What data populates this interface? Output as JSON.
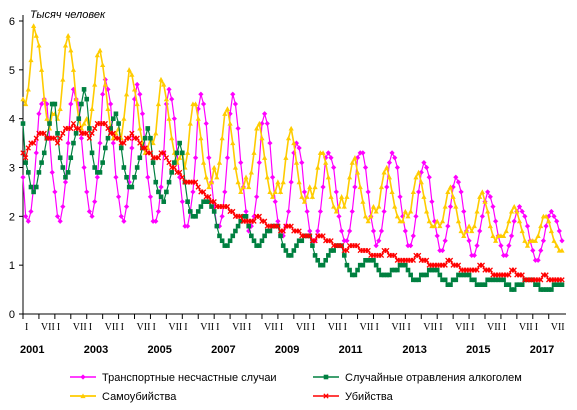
{
  "chart_data": {
    "type": "line",
    "unit_label": "Тысяч человек",
    "x_start": "2001-01",
    "x_end": "2017-12",
    "period": "monthly",
    "ylim": [
      0,
      6
    ],
    "yticks": [
      0,
      1,
      2,
      3,
      4,
      5,
      6
    ],
    "quarter_labels": [
      "I",
      "VII"
    ],
    "year_labels": [
      "2001",
      "2003",
      "2005",
      "2007",
      "2009",
      "2011",
      "2013",
      "2015",
      "2017"
    ],
    "grid": false,
    "legend_position": "bottom",
    "series": [
      {
        "name": "Транспортные несчастные случаи",
        "color": "#ff00ff",
        "marker": "diamond",
        "values": [
          2.8,
          2.0,
          1.9,
          2.1,
          2.6,
          3.3,
          4.1,
          4.3,
          4.4,
          4.3,
          3.6,
          2.9,
          2.5,
          2.0,
          1.9,
          2.2,
          2.7,
          3.5,
          4.3,
          4.6,
          4.4,
          4.3,
          3.6,
          3.0,
          2.5,
          2.1,
          2.0,
          2.3,
          2.8,
          3.5,
          4.5,
          4.8,
          4.6,
          4.3,
          3.5,
          2.8,
          2.4,
          2.0,
          1.9,
          2.2,
          2.7,
          3.4,
          4.4,
          4.7,
          4.5,
          4.1,
          3.4,
          2.8,
          2.4,
          1.9,
          1.9,
          2.1,
          2.6,
          3.3,
          4.3,
          4.6,
          4.4,
          4.0,
          3.3,
          2.8,
          2.3,
          1.8,
          1.8,
          2.1,
          2.5,
          3.2,
          4.2,
          4.5,
          4.3,
          3.9,
          3.2,
          2.7,
          2.2,
          1.8,
          1.8,
          2.0,
          2.5,
          3.2,
          4.1,
          4.5,
          4.3,
          3.8,
          3.1,
          2.6,
          2.1,
          1.7,
          1.8,
          2.0,
          2.4,
          3.1,
          3.9,
          4.1,
          3.9,
          3.5,
          2.8,
          2.3,
          1.9,
          1.6,
          1.6,
          1.8,
          2.1,
          2.7,
          3.3,
          3.5,
          3.4,
          3.1,
          2.5,
          2.1,
          1.7,
          1.5,
          1.5,
          1.7,
          2.1,
          2.6,
          3.2,
          3.3,
          3.2,
          3.0,
          2.5,
          2.0,
          1.7,
          1.5,
          1.5,
          1.7,
          2.1,
          2.6,
          3.2,
          3.3,
          3.3,
          3.0,
          2.5,
          2.0,
          1.7,
          1.4,
          1.5,
          1.7,
          2.1,
          2.6,
          3.1,
          3.3,
          3.2,
          3.0,
          2.4,
          2.0,
          1.7,
          1.4,
          1.4,
          1.6,
          2.0,
          2.5,
          2.9,
          3.1,
          3.0,
          2.8,
          2.3,
          1.9,
          1.6,
          1.3,
          1.3,
          1.5,
          1.8,
          2.2,
          2.6,
          2.8,
          2.7,
          2.5,
          2.1,
          1.7,
          1.5,
          1.2,
          1.2,
          1.4,
          1.7,
          2.0,
          2.3,
          2.5,
          2.4,
          2.2,
          1.9,
          1.6,
          1.4,
          1.2,
          1.2,
          1.4,
          1.6,
          1.9,
          2.1,
          2.2,
          2.1,
          2.0,
          1.8,
          1.5,
          1.3,
          1.1,
          1.1,
          1.3,
          1.5,
          1.8,
          2.0,
          2.1,
          2.0,
          1.9,
          1.7,
          1.5
        ]
      },
      {
        "name": "Случайные отравления алкоголем",
        "color": "#008040",
        "marker": "square",
        "values": [
          3.9,
          3.1,
          2.9,
          2.6,
          2.5,
          2.6,
          2.9,
          3.1,
          3.3,
          3.6,
          3.9,
          4.3,
          4.3,
          3.7,
          3.2,
          3.0,
          2.8,
          2.9,
          3.2,
          3.5,
          3.7,
          4.0,
          4.3,
          4.6,
          4.4,
          3.8,
          3.3,
          3.0,
          2.9,
          2.9,
          3.1,
          3.4,
          3.6,
          3.8,
          4.0,
          4.1,
          3.9,
          3.4,
          3.0,
          2.8,
          2.6,
          2.6,
          2.8,
          3.0,
          3.2,
          3.4,
          3.6,
          3.8,
          3.6,
          3.1,
          2.7,
          2.5,
          2.4,
          2.3,
          2.5,
          2.7,
          2.9,
          3.1,
          3.3,
          3.5,
          3.3,
          2.7,
          2.3,
          2.1,
          2.0,
          2.0,
          2.1,
          2.2,
          2.3,
          2.3,
          2.3,
          2.2,
          2.1,
          1.8,
          1.6,
          1.5,
          1.4,
          1.4,
          1.5,
          1.6,
          1.7,
          1.8,
          1.9,
          2.0,
          2.0,
          1.8,
          1.6,
          1.5,
          1.4,
          1.4,
          1.5,
          1.6,
          1.7,
          1.7,
          1.8,
          1.8,
          1.8,
          1.6,
          1.4,
          1.3,
          1.2,
          1.2,
          1.3,
          1.4,
          1.5,
          1.5,
          1.6,
          1.6,
          1.6,
          1.4,
          1.2,
          1.1,
          1.0,
          1.0,
          1.1,
          1.2,
          1.3,
          1.3,
          1.4,
          1.4,
          1.4,
          1.2,
          1.0,
          0.9,
          0.8,
          0.8,
          0.9,
          1.0,
          1.0,
          1.1,
          1.1,
          1.1,
          1.1,
          1.0,
          0.9,
          0.8,
          0.8,
          0.8,
          0.8,
          0.9,
          0.9,
          0.9,
          1.0,
          1.0,
          1.0,
          0.9,
          0.8,
          0.7,
          0.7,
          0.7,
          0.8,
          0.8,
          0.8,
          0.9,
          0.9,
          0.9,
          0.9,
          0.8,
          0.7,
          0.7,
          0.6,
          0.6,
          0.7,
          0.7,
          0.8,
          0.8,
          0.8,
          0.8,
          0.8,
          0.7,
          0.7,
          0.6,
          0.6,
          0.6,
          0.6,
          0.7,
          0.7,
          0.7,
          0.7,
          0.7,
          0.7,
          0.7,
          0.6,
          0.6,
          0.5,
          0.5,
          0.6,
          0.6,
          0.6,
          0.7,
          0.7,
          0.7,
          0.7,
          0.6,
          0.6,
          0.5,
          0.5,
          0.5,
          0.5,
          0.5,
          0.6,
          0.6,
          0.6,
          0.6
        ]
      },
      {
        "name": "Самоубийства",
        "color": "#ffcc00",
        "marker": "triangle",
        "values": [
          4.4,
          4.3,
          4.6,
          5.2,
          5.9,
          5.7,
          5.5,
          5.0,
          4.4,
          4.0,
          3.8,
          4.1,
          4.1,
          4.0,
          4.2,
          4.8,
          5.5,
          5.7,
          5.4,
          5.0,
          4.4,
          4.0,
          3.8,
          3.9,
          4.0,
          3.8,
          4.2,
          4.7,
          5.3,
          5.4,
          5.1,
          4.7,
          4.2,
          3.8,
          3.6,
          3.7,
          3.8,
          3.6,
          4.0,
          4.5,
          5.0,
          4.9,
          4.6,
          4.3,
          3.8,
          3.5,
          3.3,
          3.4,
          3.6,
          3.5,
          3.7,
          4.3,
          4.8,
          4.7,
          4.4,
          4.0,
          3.6,
          3.3,
          3.1,
          3.2,
          3.3,
          3.0,
          3.3,
          3.9,
          4.3,
          4.3,
          4.0,
          3.6,
          3.1,
          2.8,
          2.6,
          2.7,
          3.0,
          2.8,
          3.1,
          3.6,
          4.1,
          4.2,
          3.9,
          3.5,
          3.0,
          2.7,
          2.5,
          2.6,
          2.8,
          2.6,
          2.9,
          3.3,
          3.8,
          3.9,
          3.6,
          3.2,
          2.8,
          2.5,
          2.4,
          2.5,
          2.7,
          2.5,
          2.7,
          3.2,
          3.6,
          3.8,
          3.5,
          3.1,
          2.7,
          2.4,
          2.3,
          2.4,
          2.6,
          2.4,
          2.6,
          3.0,
          3.3,
          3.3,
          3.1,
          2.8,
          2.4,
          2.2,
          2.1,
          2.2,
          2.4,
          2.2,
          2.4,
          2.8,
          3.1,
          3.2,
          2.9,
          2.6,
          2.3,
          2.0,
          1.9,
          2.0,
          2.2,
          2.1,
          2.2,
          2.6,
          2.9,
          3.0,
          2.8,
          2.5,
          2.2,
          2.0,
          1.9,
          1.9,
          2.1,
          2.0,
          2.1,
          2.5,
          2.8,
          2.9,
          2.7,
          2.4,
          2.1,
          1.9,
          1.8,
          1.8,
          1.9,
          1.8,
          1.9,
          2.2,
          2.5,
          2.6,
          2.4,
          2.2,
          1.9,
          1.7,
          1.6,
          1.7,
          1.8,
          1.7,
          1.8,
          2.1,
          2.4,
          2.5,
          2.3,
          2.1,
          1.8,
          1.6,
          1.5,
          1.6,
          1.6,
          1.6,
          1.7,
          1.9,
          2.1,
          2.2,
          2.1,
          1.9,
          1.7,
          1.5,
          1.4,
          1.5,
          1.5,
          1.5,
          1.6,
          1.8,
          2.0,
          2.0,
          1.9,
          1.7,
          1.5,
          1.4,
          1.3,
          1.3
        ]
      },
      {
        "name": "Убийства",
        "color": "#ff0000",
        "marker": "cross",
        "values": [
          3.3,
          3.2,
          3.4,
          3.5,
          3.5,
          3.6,
          3.7,
          3.7,
          3.7,
          3.6,
          3.6,
          3.6,
          3.6,
          3.5,
          3.6,
          3.7,
          3.8,
          3.8,
          3.8,
          3.9,
          3.8,
          3.8,
          3.7,
          3.7,
          3.7,
          3.6,
          3.7,
          3.8,
          3.9,
          3.9,
          3.9,
          3.9,
          3.8,
          3.7,
          3.7,
          3.6,
          3.6,
          3.5,
          3.5,
          3.6,
          3.6,
          3.7,
          3.6,
          3.6,
          3.5,
          3.4,
          3.4,
          3.3,
          3.3,
          3.2,
          3.2,
          3.2,
          3.3,
          3.3,
          3.2,
          3.1,
          3.0,
          3.0,
          2.9,
          2.9,
          2.8,
          2.7,
          2.7,
          2.7,
          2.7,
          2.7,
          2.6,
          2.5,
          2.5,
          2.4,
          2.4,
          2.3,
          2.3,
          2.2,
          2.2,
          2.2,
          2.2,
          2.2,
          2.1,
          2.1,
          2.0,
          2.0,
          2.0,
          1.9,
          1.9,
          1.9,
          1.9,
          1.9,
          2.0,
          2.0,
          1.9,
          1.9,
          1.8,
          1.8,
          1.8,
          1.8,
          1.8,
          1.7,
          1.7,
          1.8,
          1.8,
          1.8,
          1.7,
          1.7,
          1.7,
          1.6,
          1.6,
          1.6,
          1.6,
          1.5,
          1.5,
          1.6,
          1.6,
          1.6,
          1.5,
          1.5,
          1.5,
          1.4,
          1.4,
          1.4,
          1.4,
          1.3,
          1.3,
          1.4,
          1.4,
          1.4,
          1.4,
          1.3,
          1.3,
          1.3,
          1.3,
          1.2,
          1.2,
          1.2,
          1.2,
          1.2,
          1.3,
          1.3,
          1.2,
          1.2,
          1.2,
          1.1,
          1.1,
          1.1,
          1.1,
          1.1,
          1.1,
          1.1,
          1.2,
          1.2,
          1.1,
          1.1,
          1.1,
          1.0,
          1.0,
          1.0,
          1.0,
          1.0,
          1.0,
          1.0,
          1.1,
          1.1,
          1.0,
          1.0,
          1.0,
          0.9,
          0.9,
          0.9,
          0.9,
          0.9,
          0.9,
          0.9,
          1.0,
          1.0,
          0.9,
          0.9,
          0.9,
          0.8,
          0.8,
          0.8,
          0.8,
          0.8,
          0.8,
          0.8,
          0.9,
          0.9,
          0.8,
          0.8,
          0.8,
          0.7,
          0.7,
          0.7,
          0.7,
          0.7,
          0.7,
          0.7,
          0.8,
          0.8,
          0.7,
          0.7,
          0.7,
          0.7,
          0.7,
          0.7
        ]
      }
    ]
  }
}
